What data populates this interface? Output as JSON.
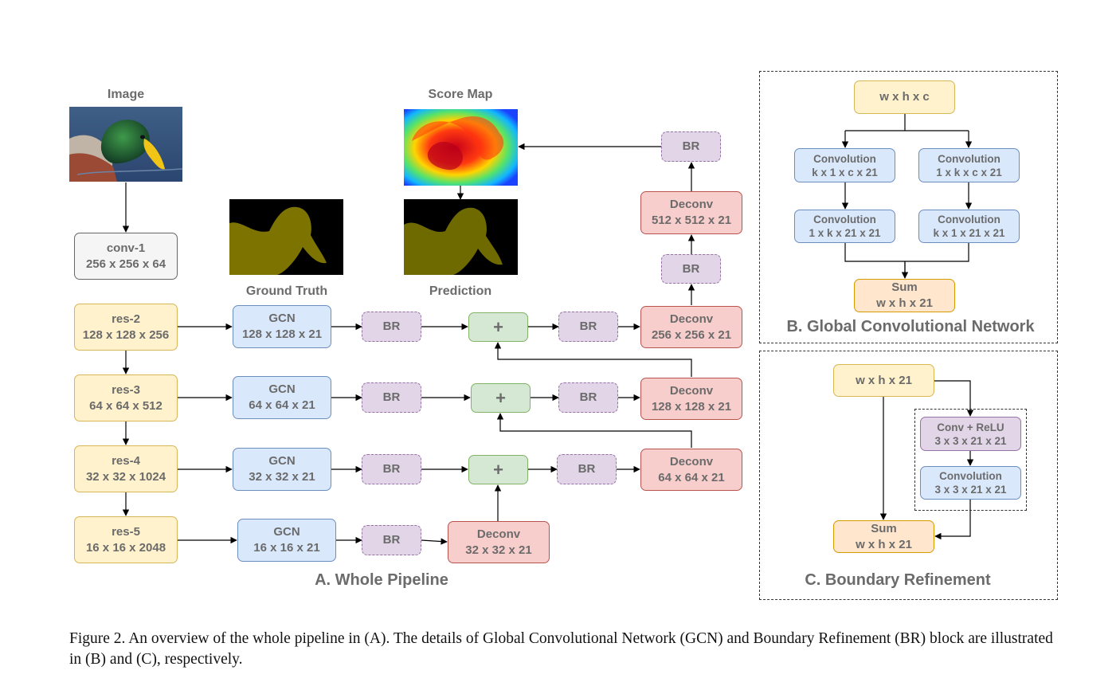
{
  "labels": {
    "image": "Image",
    "score_map": "Score Map",
    "ground_truth": "Ground Truth",
    "prediction": "Prediction"
  },
  "sections": {
    "a": "A. Whole Pipeline",
    "b": "B. Global Convolutional Network",
    "c": "C. Boundary Refinement"
  },
  "pipeline": {
    "conv1": [
      "conv-1",
      "256 x 256 x 64"
    ],
    "res2": [
      "res-2",
      "128 x 128 x 256"
    ],
    "res3": [
      "res-3",
      "64 x 64 x 512"
    ],
    "res4": [
      "res-4",
      "32 x 32 x 1024"
    ],
    "res5": [
      "res-5",
      "16 x 16 x 2048"
    ],
    "gcn2": [
      "GCN",
      "128 x 128 x 21"
    ],
    "gcn3": [
      "GCN",
      "64 x 64 x 21"
    ],
    "gcn4": [
      "GCN",
      "32 x 32 x 21"
    ],
    "gcn5": [
      "GCN",
      "16 x 16 x 21"
    ],
    "br_label": "BR",
    "plus_label": "+",
    "deconv_32": [
      "Deconv",
      "32 x 32 x 21"
    ],
    "deconv_64": [
      "Deconv",
      "64 x 64 x 21"
    ],
    "deconv_128": [
      "Deconv",
      "128 x 128 x 21"
    ],
    "deconv_256": [
      "Deconv",
      "256 x 256 x 21"
    ],
    "deconv_512": [
      "Deconv",
      "512 x 512 x 21"
    ]
  },
  "gcn_block": {
    "input": "w x h x c",
    "left_1": [
      "Convolution",
      "k x 1 x c x 21"
    ],
    "left_2": [
      "Convolution",
      "1 x k x 21 x 21"
    ],
    "right_1": [
      "Convolution",
      "1 x k x c x 21"
    ],
    "right_2": [
      "Convolution",
      "k x 1 x 21 x 21"
    ],
    "sum": [
      "Sum",
      "w x h x 21"
    ]
  },
  "br_block": {
    "input": "w x h x 21",
    "conv_relu": [
      "Conv + ReLU",
      "3 x 3 x 21 x 21"
    ],
    "conv": [
      "Convolution",
      "3 x 3 x 21 x 21"
    ],
    "sum": [
      "Sum",
      "w x h x 21"
    ]
  },
  "caption": "Figure 2.  An overview of the whole pipeline in (A). The details of Global Convolutional Network (GCN) and Boundary Refinement (BR) block are illustrated in (B) and (C), respectively.",
  "colors": {
    "gray": "#f5f5f5",
    "yellow": "#fff2cc",
    "blue": "#dae8fc",
    "purple": "#e1d5e7",
    "green": "#d5e8d4",
    "red": "#f8cecc",
    "orange": "#ffe6cc",
    "mask": "#7c7300"
  }
}
